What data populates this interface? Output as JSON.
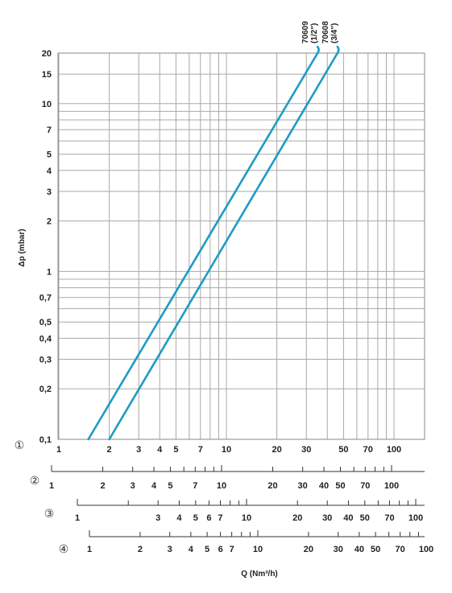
{
  "chart_data": {
    "type": "line",
    "xscale": "log",
    "yscale": "log",
    "xlim": [
      1,
      170
    ],
    "ylim": [
      0.1,
      20
    ],
    "grid": true,
    "xlabel": "Q (Nm³/h)",
    "ylabel": "Δp (mbar)",
    "y_ticks": [
      {
        "v": 20,
        "label": "20"
      },
      {
        "v": 15,
        "label": "15"
      },
      {
        "v": 10,
        "label": "10"
      },
      {
        "v": 7,
        "label": "7"
      },
      {
        "v": 5,
        "label": "5"
      },
      {
        "v": 4,
        "label": "4"
      },
      {
        "v": 3,
        "label": "3"
      },
      {
        "v": 2,
        "label": "2"
      },
      {
        "v": 1,
        "label": "1"
      },
      {
        "v": 0.7,
        "label": "0,7"
      },
      {
        "v": 0.5,
        "label": "0,5"
      },
      {
        "v": 0.4,
        "label": "0,4"
      },
      {
        "v": 0.3,
        "label": "0,3"
      },
      {
        "v": 0.2,
        "label": "0,2"
      },
      {
        "v": 0.1,
        "label": "0,1"
      }
    ],
    "y_grid": [
      0.1,
      0.2,
      0.3,
      0.4,
      0.5,
      0.6,
      0.7,
      0.8,
      0.9,
      1,
      2,
      3,
      4,
      5,
      6,
      7,
      8,
      9,
      10,
      15,
      20
    ],
    "x_grid": [
      1,
      2,
      3,
      4,
      5,
      6,
      7,
      8,
      9,
      10,
      20,
      30,
      40,
      50,
      60,
      70,
      80,
      90,
      100
    ],
    "series": [
      {
        "name": "70609\n(1/2\")",
        "color": "#1e9bc4",
        "x": [
          1.5,
          35
        ],
        "y": [
          0.1,
          20
        ]
      },
      {
        "name": "70608\n(3/4\")",
        "color": "#1e9bc4",
        "x": [
          2.0,
          46
        ],
        "y": [
          0.1,
          20
        ]
      }
    ],
    "scales": [
      {
        "number": "①",
        "ticks": [
          1,
          2,
          3,
          4,
          5,
          6,
          7,
          8,
          9,
          10,
          20,
          30,
          40,
          50,
          60,
          70,
          80,
          90,
          100
        ],
        "labels": [
          {
            "v": 1,
            "t": "1"
          },
          {
            "v": 2,
            "t": "2"
          },
          {
            "v": 3,
            "t": "3"
          },
          {
            "v": 4,
            "t": "4"
          },
          {
            "v": 5,
            "t": "5"
          },
          {
            "v": 7,
            "t": "7"
          },
          {
            "v": 10,
            "t": "10"
          },
          {
            "v": 20,
            "t": "20"
          },
          {
            "v": 30,
            "t": "30"
          },
          {
            "v": 50,
            "t": "50"
          },
          {
            "v": 70,
            "t": "70"
          },
          {
            "v": 100,
            "t": "100"
          }
        ]
      },
      {
        "number": "②",
        "ticks": [
          1,
          2,
          3,
          4,
          5,
          6,
          7,
          8,
          9,
          10,
          20,
          30,
          40,
          50,
          60,
          70,
          80,
          90,
          100
        ],
        "labels": [
          {
            "v": 1,
            "t": "1"
          },
          {
            "v": 2,
            "t": "2"
          },
          {
            "v": 3,
            "t": "3"
          },
          {
            "v": 4,
            "t": "4"
          },
          {
            "v": 5,
            "t": "5"
          },
          {
            "v": 7,
            "t": "7"
          },
          {
            "v": 10,
            "t": "10"
          },
          {
            "v": 20,
            "t": "20"
          },
          {
            "v": 30,
            "t": "30"
          },
          {
            "v": 40,
            "t": "40"
          },
          {
            "v": 50,
            "t": "50"
          },
          {
            "v": 70,
            "t": "70"
          },
          {
            "v": 100,
            "t": "100"
          }
        ]
      },
      {
        "number": "③",
        "ticks": [
          1,
          2,
          3,
          4,
          5,
          6,
          7,
          8,
          9,
          10,
          20,
          30,
          40,
          50,
          60,
          70,
          80,
          90,
          100
        ],
        "labels": [
          {
            "v": 1,
            "t": "1"
          },
          {
            "v": 3,
            "t": "3"
          },
          {
            "v": 4,
            "t": "4"
          },
          {
            "v": 5,
            "t": "5"
          },
          {
            "v": 6,
            "t": "6"
          },
          {
            "v": 7,
            "t": "7"
          },
          {
            "v": 10,
            "t": "10"
          },
          {
            "v": 20,
            "t": "20"
          },
          {
            "v": 30,
            "t": "30"
          },
          {
            "v": 40,
            "t": "40"
          },
          {
            "v": 50,
            "t": "50"
          },
          {
            "v": 70,
            "t": "70"
          },
          {
            "v": 100,
            "t": "100"
          }
        ]
      },
      {
        "number": "④",
        "ticks": [
          1,
          2,
          3,
          4,
          5,
          6,
          7,
          8,
          9,
          10,
          20,
          30,
          40,
          50,
          60,
          70,
          80,
          90,
          100
        ],
        "labels": [
          {
            "v": 1,
            "t": "1"
          },
          {
            "v": 2,
            "t": "2"
          },
          {
            "v": 3,
            "t": "3"
          },
          {
            "v": 4,
            "t": "4"
          },
          {
            "v": 5,
            "t": "5"
          },
          {
            "v": 6,
            "t": "6"
          },
          {
            "v": 7,
            "t": "7"
          },
          {
            "v": 10,
            "t": "10"
          },
          {
            "v": 20,
            "t": "20"
          },
          {
            "v": 30,
            "t": "30"
          },
          {
            "v": 40,
            "t": "40"
          },
          {
            "v": 50,
            "t": "50"
          },
          {
            "v": 70,
            "t": "70"
          },
          {
            "v": 100,
            "t": "100"
          }
        ]
      }
    ]
  }
}
